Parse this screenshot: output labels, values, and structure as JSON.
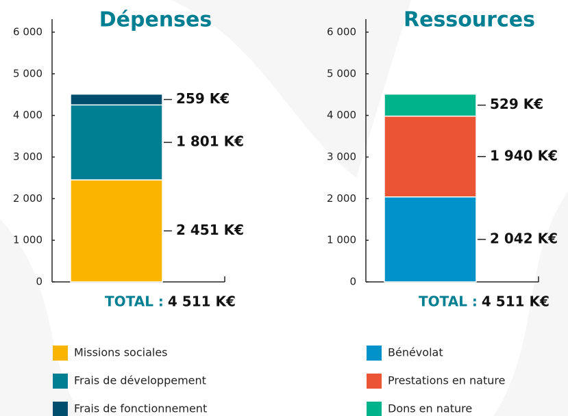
{
  "chart_data": [
    {
      "type": "bar",
      "title": "Dépenses",
      "series": [
        {
          "name": "Missions sociales",
          "color": "#fbb500",
          "values": [
            2451
          ],
          "value_labels": [
            "2 451 K€"
          ]
        },
        {
          "name": "Frais de développement",
          "color": "#007e92",
          "values": [
            1801
          ],
          "value_labels": [
            "1 801 K€"
          ]
        },
        {
          "name": "Frais de fonctionnement",
          "color": "#004e6e",
          "values": [
            259
          ],
          "value_labels": [
            "259 K€"
          ]
        }
      ],
      "ylim": [
        0,
        6000
      ],
      "yticks": [
        0,
        {
          "value": 1000,
          "label": "1 000"
        },
        {
          "value": 2000,
          "label": "2 000"
        },
        {
          "value": 3000,
          "label": "3 000"
        },
        {
          "value": 4000,
          "label": "4 000"
        },
        {
          "value": 5000,
          "label": "5 000"
        },
        {
          "value": 6000,
          "label": "6 000"
        }
      ],
      "total": {
        "label": "TOTAL :",
        "value_label": "4 511 K€"
      }
    },
    {
      "type": "bar",
      "title": "Ressources",
      "series": [
        {
          "name": "Bénévolat",
          "color": "#0092c8",
          "values": [
            2042
          ],
          "value_labels": [
            "2 042 K€"
          ]
        },
        {
          "name": "Prestations en nature",
          "color": "#eb5535",
          "values": [
            1940
          ],
          "value_labels": [
            "1 940 K€"
          ]
        },
        {
          "name": "Dons en nature",
          "color": "#00b38a",
          "values": [
            529
          ],
          "value_labels": [
            "529 K€"
          ]
        }
      ],
      "ylim": [
        0,
        6000
      ],
      "yticks": [
        0,
        {
          "value": 1000,
          "label": "1 000"
        },
        {
          "value": 2000,
          "label": "2 000"
        },
        {
          "value": 3000,
          "label": "3 000"
        },
        {
          "value": 4000,
          "label": "4 000"
        },
        {
          "value": 5000,
          "label": "5 000"
        },
        {
          "value": 6000,
          "label": "6 000"
        }
      ],
      "total": {
        "label": "TOTAL :",
        "value_label": "4 511 K€"
      }
    }
  ]
}
